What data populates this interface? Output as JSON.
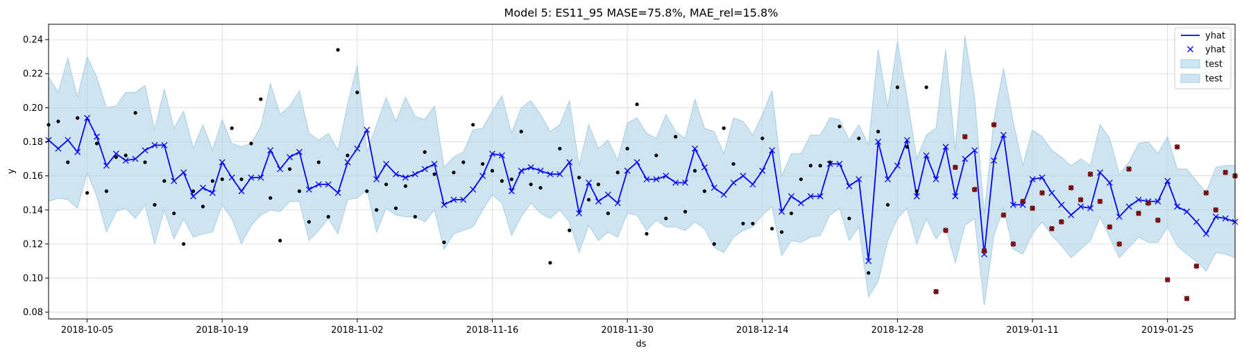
{
  "chart_data": {
    "type": "line",
    "title": "Model 5: ES11_95 MASE=75.8%, MAE_rel=15.8%",
    "xlabel": "ds",
    "ylabel": "y",
    "x_start": "2018-10-01",
    "x_end": "2019-02-01",
    "ylim": [
      0.076,
      0.249
    ],
    "grid": true,
    "legend_position": "top-right",
    "colors": {
      "forecast": "#0000ff",
      "interval": "#a6cee3",
      "train": "#000000",
      "test_fill": "#d62728",
      "test_edge": "#8b0000"
    },
    "x_ticks": [
      "2018-10-05",
      "2018-10-19",
      "2018-11-02",
      "2018-11-16",
      "2018-11-30",
      "2018-12-14",
      "2018-12-28",
      "2019-01-11",
      "2019-01-25"
    ],
    "y_ticks": [
      "0.08",
      "0.10",
      "0.12",
      "0.14",
      "0.16",
      "0.18",
      "0.20",
      "0.22",
      "0.24"
    ],
    "legend": [
      "yhat",
      "yhat",
      "test",
      "test"
    ],
    "forecast": {
      "dates": [
        "2018-10-01",
        "2018-10-02",
        "2018-10-03",
        "2018-10-04",
        "2018-10-05",
        "2018-10-06",
        "2018-10-07",
        "2018-10-08",
        "2018-10-09",
        "2018-10-10",
        "2018-10-11",
        "2018-10-12",
        "2018-10-13",
        "2018-10-14",
        "2018-10-15",
        "2018-10-16",
        "2018-10-17",
        "2018-10-18",
        "2018-10-19",
        "2018-10-20",
        "2018-10-21",
        "2018-10-22",
        "2018-10-23",
        "2018-10-24",
        "2018-10-25",
        "2018-10-26",
        "2018-10-27",
        "2018-10-28",
        "2018-10-29",
        "2018-10-30",
        "2018-10-31",
        "2018-11-01",
        "2018-11-02",
        "2018-11-03",
        "2018-11-04",
        "2018-11-05",
        "2018-11-06",
        "2018-11-07",
        "2018-11-08",
        "2018-11-09",
        "2018-11-10",
        "2018-11-11",
        "2018-11-12",
        "2018-11-13",
        "2018-11-14",
        "2018-11-15",
        "2018-11-16",
        "2018-11-17",
        "2018-11-18",
        "2018-11-19",
        "2018-11-20",
        "2018-11-21",
        "2018-11-22",
        "2018-11-23",
        "2018-11-24",
        "2018-11-25",
        "2018-11-26",
        "2018-11-27",
        "2018-11-28",
        "2018-11-29",
        "2018-11-30",
        "2018-12-01",
        "2018-12-02",
        "2018-12-03",
        "2018-12-04",
        "2018-12-05",
        "2018-12-06",
        "2018-12-07",
        "2018-12-08",
        "2018-12-09",
        "2018-12-10",
        "2018-12-11",
        "2018-12-12",
        "2018-12-13",
        "2018-12-14",
        "2018-12-15",
        "2018-12-16",
        "2018-12-17",
        "2018-12-18",
        "2018-12-19",
        "2018-12-20",
        "2018-12-21",
        "2018-12-22",
        "2018-12-23",
        "2018-12-24",
        "2018-12-25",
        "2018-12-26",
        "2018-12-27",
        "2018-12-28",
        "2018-12-29",
        "2018-12-30",
        "2018-12-31",
        "2019-01-01",
        "2019-01-02",
        "2019-01-03",
        "2019-01-04",
        "2019-01-05",
        "2019-01-06",
        "2019-01-07",
        "2019-01-08",
        "2019-01-09",
        "2019-01-10",
        "2019-01-11",
        "2019-01-12",
        "2019-01-13",
        "2019-01-14",
        "2019-01-15",
        "2019-01-16",
        "2019-01-17",
        "2019-01-18",
        "2019-01-19",
        "2019-01-20",
        "2019-01-21",
        "2019-01-22",
        "2019-01-23",
        "2019-01-24",
        "2019-01-25",
        "2019-01-26",
        "2019-01-27",
        "2019-01-28",
        "2019-01-29",
        "2019-01-30",
        "2019-01-31",
        "2019-02-01"
      ],
      "yhat": [
        0.181,
        0.176,
        0.181,
        0.174,
        0.194,
        0.183,
        0.166,
        0.173,
        0.169,
        0.17,
        0.175,
        0.178,
        0.178,
        0.157,
        0.162,
        0.148,
        0.153,
        0.15,
        0.168,
        0.159,
        0.151,
        0.159,
        0.159,
        0.175,
        0.164,
        0.171,
        0.174,
        0.152,
        0.155,
        0.155,
        0.15,
        0.168,
        0.176,
        0.187,
        0.158,
        0.167,
        0.161,
        0.159,
        0.161,
        0.164,
        0.167,
        0.143,
        0.146,
        0.146,
        0.152,
        0.16,
        0.173,
        0.172,
        0.151,
        0.163,
        0.165,
        0.163,
        0.161,
        0.161,
        0.168,
        0.138,
        0.156,
        0.145,
        0.149,
        0.144,
        0.163,
        0.168,
        0.158,
        0.158,
        0.16,
        0.156,
        0.156,
        0.176,
        0.165,
        0.153,
        0.149,
        0.156,
        0.16,
        0.155,
        0.163,
        0.175,
        0.139,
        0.148,
        0.144,
        0.148,
        0.148,
        0.167,
        0.167,
        0.154,
        0.158,
        0.11,
        0.18,
        0.158,
        0.166,
        0.181,
        0.148,
        0.172,
        0.158,
        0.177,
        0.148,
        0.17,
        0.175,
        0.114,
        0.169,
        0.184,
        0.143,
        0.143,
        0.158,
        0.159,
        0.15,
        0.143,
        0.137,
        0.142,
        0.141,
        0.162,
        0.156,
        0.136,
        0.142,
        0.146,
        0.145,
        0.145,
        0.157,
        0.142,
        0.139,
        0.133,
        0.126,
        0.136,
        0.135,
        0.133
      ],
      "lower": [
        0.145,
        0.147,
        0.146,
        0.141,
        0.162,
        0.148,
        0.127,
        0.139,
        0.141,
        0.135,
        0.143,
        0.12,
        0.14,
        0.123,
        0.135,
        0.124,
        0.126,
        0.127,
        0.143,
        0.135,
        0.12,
        0.131,
        0.137,
        0.14,
        0.139,
        0.145,
        0.145,
        0.122,
        0.128,
        0.135,
        0.126,
        0.146,
        0.147,
        0.152,
        0.127,
        0.141,
        0.137,
        0.136,
        0.136,
        0.133,
        0.14,
        0.117,
        0.126,
        0.128,
        0.13,
        0.14,
        0.149,
        0.144,
        0.125,
        0.136,
        0.144,
        0.138,
        0.135,
        0.14,
        0.133,
        0.115,
        0.131,
        0.122,
        0.127,
        0.124,
        0.138,
        0.137,
        0.128,
        0.134,
        0.13,
        0.13,
        0.128,
        0.133,
        0.129,
        0.118,
        0.115,
        0.124,
        0.128,
        0.13,
        0.137,
        0.142,
        0.113,
        0.122,
        0.121,
        0.124,
        0.125,
        0.137,
        0.141,
        0.122,
        0.13,
        0.089,
        0.098,
        0.122,
        0.135,
        0.141,
        0.12,
        0.135,
        0.123,
        0.13,
        0.109,
        0.131,
        0.135,
        0.084,
        0.125,
        0.141,
        0.117,
        0.114,
        0.126,
        0.133,
        0.125,
        0.119,
        0.112,
        0.117,
        0.122,
        0.136,
        0.124,
        0.112,
        0.118,
        0.124,
        0.121,
        0.121,
        0.13,
        0.119,
        0.114,
        0.11,
        0.104,
        0.115,
        0.114,
        0.112
      ],
      "upper": [
        0.218,
        0.209,
        0.229,
        0.206,
        0.23,
        0.218,
        0.2,
        0.201,
        0.209,
        0.209,
        0.213,
        0.187,
        0.211,
        0.188,
        0.198,
        0.176,
        0.19,
        0.175,
        0.193,
        0.179,
        0.177,
        0.179,
        0.189,
        0.214,
        0.196,
        0.201,
        0.21,
        0.185,
        0.181,
        0.185,
        0.175,
        0.202,
        0.225,
        0.174,
        0.19,
        0.206,
        0.192,
        0.206,
        0.195,
        0.193,
        0.201,
        0.165,
        0.171,
        0.174,
        0.187,
        0.188,
        0.198,
        0.207,
        0.185,
        0.2,
        0.204,
        0.196,
        0.186,
        0.19,
        0.204,
        0.166,
        0.19,
        0.176,
        0.181,
        0.169,
        0.191,
        0.194,
        0.185,
        0.182,
        0.196,
        0.186,
        0.182,
        0.205,
        0.188,
        0.186,
        0.173,
        0.194,
        0.192,
        0.184,
        0.196,
        0.21,
        0.16,
        0.173,
        0.173,
        0.184,
        0.184,
        0.194,
        0.193,
        0.181,
        0.19,
        0.178,
        0.234,
        0.2,
        0.239,
        0.206,
        0.17,
        0.184,
        0.188,
        0.234,
        0.175,
        0.242,
        0.206,
        0.137,
        0.193,
        0.223,
        0.192,
        0.166,
        0.187,
        0.183,
        0.175,
        0.171,
        0.166,
        0.17,
        0.166,
        0.19,
        0.182,
        0.161,
        0.168,
        0.179,
        0.18,
        0.173,
        0.183,
        0.164,
        0.164,
        0.157,
        0.15,
        0.165,
        0.166,
        0.166
      ]
    },
    "train": {
      "dates": [
        "2018-10-01",
        "2018-10-02",
        "2018-10-03",
        "2018-10-04",
        "2018-10-05",
        "2018-10-06",
        "2018-10-07",
        "2018-10-08",
        "2018-10-09",
        "2018-10-10",
        "2018-10-11",
        "2018-10-12",
        "2018-10-13",
        "2018-10-14",
        "2018-10-15",
        "2018-10-16",
        "2018-10-17",
        "2018-10-18",
        "2018-10-19",
        "2018-10-20",
        "2018-10-21",
        "2018-10-22",
        "2018-10-23",
        "2018-10-24",
        "2018-10-25",
        "2018-10-26",
        "2018-10-27",
        "2018-10-28",
        "2018-10-29",
        "2018-10-30",
        "2018-10-31",
        "2018-11-01",
        "2018-11-02",
        "2018-11-03",
        "2018-11-04",
        "2018-11-05",
        "2018-11-06",
        "2018-11-07",
        "2018-11-08",
        "2018-11-09",
        "2018-11-10",
        "2018-11-11",
        "2018-11-12",
        "2018-11-13",
        "2018-11-14",
        "2018-11-15",
        "2018-11-16",
        "2018-11-17",
        "2018-11-18",
        "2018-11-19",
        "2018-11-20",
        "2018-11-21",
        "2018-11-22",
        "2018-11-23",
        "2018-11-24",
        "2018-11-25",
        "2018-11-26",
        "2018-11-27",
        "2018-11-28",
        "2018-11-29",
        "2018-11-30",
        "2018-12-01",
        "2018-12-02",
        "2018-12-03",
        "2018-12-04",
        "2018-12-05",
        "2018-12-06",
        "2018-12-07",
        "2018-12-08",
        "2018-12-09",
        "2018-12-10",
        "2018-12-11",
        "2018-12-12",
        "2018-12-13",
        "2018-12-14",
        "2018-12-15",
        "2018-12-16",
        "2018-12-17",
        "2018-12-18",
        "2018-12-19",
        "2018-12-20",
        "2018-12-21",
        "2018-12-22",
        "2018-12-23",
        "2018-12-24",
        "2018-12-25",
        "2018-12-26",
        "2018-12-27",
        "2018-12-28",
        "2018-12-29",
        "2018-12-30",
        "2018-12-31"
      ],
      "y": [
        0.19,
        0.192,
        0.168,
        0.194,
        0.15,
        0.179,
        0.151,
        0.171,
        0.172,
        0.197,
        0.168,
        0.143,
        0.157,
        0.138,
        0.12,
        0.151,
        0.142,
        0.157,
        0.158,
        0.188,
        0.158,
        0.179,
        0.205,
        0.147,
        0.122,
        0.164,
        0.151,
        0.133,
        0.168,
        0.136,
        0.234,
        0.172,
        0.209,
        0.151,
        0.14,
        0.155,
        0.141,
        0.154,
        0.136,
        0.174,
        0.161,
        0.121,
        0.162,
        0.168,
        0.19,
        0.167,
        0.163,
        0.157,
        0.158,
        0.186,
        0.155,
        0.153,
        0.109,
        0.176,
        0.128,
        0.159,
        0.146,
        0.155,
        0.138,
        0.162,
        0.176,
        0.202,
        0.126,
        0.172,
        0.135,
        0.183,
        0.139,
        0.163,
        0.151,
        0.12,
        0.188,
        0.167,
        0.132,
        0.132,
        0.182,
        0.129,
        0.127,
        0.138,
        0.158,
        0.166,
        0.166,
        0.168,
        0.189,
        0.135,
        0.182,
        0.103,
        0.186,
        0.143,
        0.212,
        0.177,
        0.151,
        0.212
      ]
    },
    "test": {
      "dates": [
        "2019-01-01",
        "2019-01-02",
        "2019-01-03",
        "2019-01-04",
        "2019-01-05",
        "2019-01-06",
        "2019-01-07",
        "2019-01-08",
        "2019-01-09",
        "2019-01-10",
        "2019-01-11",
        "2019-01-12",
        "2019-01-13",
        "2019-01-14",
        "2019-01-15",
        "2019-01-16",
        "2019-01-17",
        "2019-01-18",
        "2019-01-19",
        "2019-01-20",
        "2019-01-21",
        "2019-01-22",
        "2019-01-23",
        "2019-01-24",
        "2019-01-25",
        "2019-01-26",
        "2019-01-27",
        "2019-01-28",
        "2019-01-29",
        "2019-01-30",
        "2019-01-31",
        "2019-02-01"
      ],
      "y": [
        0.092,
        0.128,
        0.165,
        0.183,
        0.152,
        0.116,
        0.19,
        0.137,
        0.12,
        0.145,
        0.141,
        0.15,
        0.129,
        0.133,
        0.153,
        0.146,
        0.161,
        0.145,
        0.13,
        0.12,
        0.164,
        0.138,
        0.144,
        0.134,
        0.099,
        0.177,
        0.088,
        0.107,
        0.15,
        0.14,
        0.162,
        0.16
      ]
    }
  }
}
